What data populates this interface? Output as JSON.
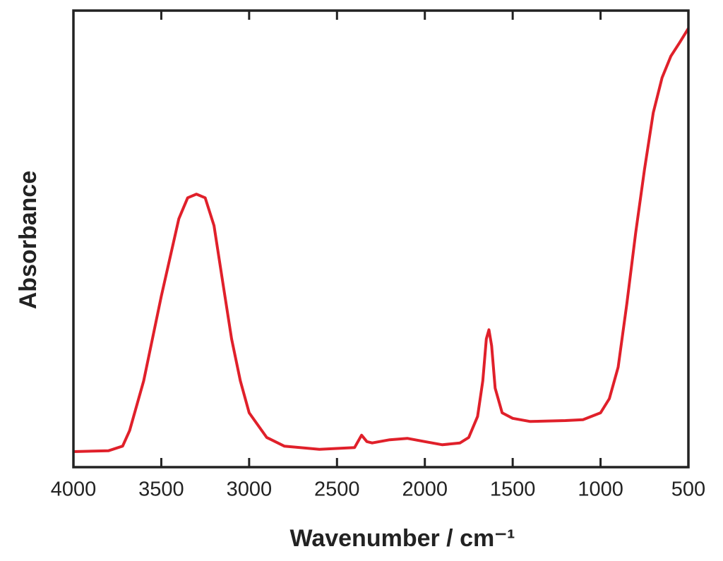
{
  "chart_data": {
    "type": "line",
    "xlabel": "Wavenumber / cm⁻¹",
    "ylabel": "Absorbance",
    "x": [
      4000,
      3800,
      3720,
      3680,
      3600,
      3500,
      3400,
      3350,
      3300,
      3250,
      3200,
      3150,
      3100,
      3050,
      3000,
      2900,
      2800,
      2600,
      2400,
      2360,
      2330,
      2300,
      2200,
      2100,
      2000,
      1900,
      1800,
      1750,
      1700,
      1670,
      1650,
      1635,
      1620,
      1600,
      1560,
      1500,
      1400,
      1200,
      1100,
      1000,
      950,
      900,
      850,
      800,
      750,
      700,
      650,
      600,
      550,
      500
    ],
    "values": [
      0.034,
      0.036,
      0.046,
      0.08,
      0.189,
      0.374,
      0.544,
      0.59,
      0.598,
      0.59,
      0.529,
      0.405,
      0.281,
      0.189,
      0.119,
      0.065,
      0.046,
      0.039,
      0.043,
      0.07,
      0.056,
      0.053,
      0.06,
      0.063,
      0.056,
      0.049,
      0.053,
      0.065,
      0.111,
      0.189,
      0.281,
      0.301,
      0.266,
      0.173,
      0.119,
      0.107,
      0.1,
      0.102,
      0.104,
      0.119,
      0.15,
      0.219,
      0.359,
      0.513,
      0.652,
      0.776,
      0.853,
      0.9,
      0.93,
      0.961
    ],
    "color": "#e0202a",
    "xlim": [
      4000,
      500
    ],
    "xticks": [
      4000,
      3500,
      3000,
      2500,
      2000,
      1500,
      1000,
      500
    ],
    "ylim": [
      0,
      1
    ]
  }
}
